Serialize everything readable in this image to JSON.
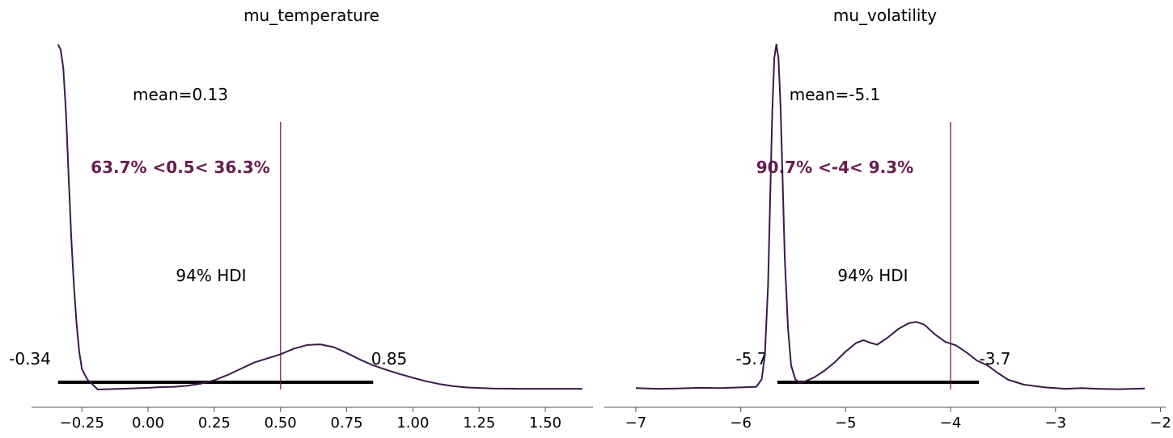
{
  "chart_data": [
    {
      "type": "density",
      "title": "mu_temperature",
      "xlim": [
        -0.44,
        1.68
      ],
      "xticks": [
        -0.25,
        0.0,
        0.25,
        0.5,
        0.75,
        1.0,
        1.25,
        1.5
      ],
      "xtick_labels": [
        "−0.25",
        "0.00",
        "0.25",
        "0.50",
        "0.75",
        "1.00",
        "1.25",
        "1.50"
      ],
      "mean_label": "mean=0.13",
      "hdi_label": "94% HDI",
      "hdi": [
        -0.34,
        0.85
      ],
      "hdi_low_label": "-0.34",
      "hdi_high_label": "0.85",
      "ref_val": 0.5,
      "ref_label": "63.7% <0.5< 36.3%",
      "line_color": "#3a1a47",
      "ref_color": "#6b1b4f",
      "density": [
        [
          -0.34,
          1.0
        ],
        [
          -0.33,
          0.985
        ],
        [
          -0.32,
          0.93
        ],
        [
          -0.31,
          0.8
        ],
        [
          -0.3,
          0.62
        ],
        [
          -0.29,
          0.44
        ],
        [
          -0.28,
          0.3
        ],
        [
          -0.27,
          0.19
        ],
        [
          -0.26,
          0.11
        ],
        [
          -0.25,
          0.06
        ],
        [
          -0.23,
          0.03
        ],
        [
          -0.21,
          0.015
        ],
        [
          -0.19,
          0.0
        ],
        [
          -0.1,
          0.002
        ],
        [
          0.0,
          0.005
        ],
        [
          0.05,
          0.007
        ],
        [
          0.1,
          0.008
        ],
        [
          0.15,
          0.011
        ],
        [
          0.2,
          0.017
        ],
        [
          0.25,
          0.027
        ],
        [
          0.3,
          0.042
        ],
        [
          0.35,
          0.06
        ],
        [
          0.4,
          0.078
        ],
        [
          0.45,
          0.09
        ],
        [
          0.5,
          0.102
        ],
        [
          0.55,
          0.118
        ],
        [
          0.6,
          0.129
        ],
        [
          0.65,
          0.131
        ],
        [
          0.7,
          0.123
        ],
        [
          0.75,
          0.106
        ],
        [
          0.8,
          0.087
        ],
        [
          0.85,
          0.07
        ],
        [
          0.9,
          0.057
        ],
        [
          0.95,
          0.045
        ],
        [
          1.0,
          0.034
        ],
        [
          1.05,
          0.024
        ],
        [
          1.1,
          0.016
        ],
        [
          1.15,
          0.01
        ],
        [
          1.2,
          0.006
        ],
        [
          1.3,
          0.003
        ],
        [
          1.4,
          0.002
        ],
        [
          1.5,
          0.002
        ],
        [
          1.64,
          0.002
        ]
      ]
    },
    {
      "type": "density",
      "title": "mu_volatility",
      "xlim": [
        -7.3,
        -1.95
      ],
      "xticks": [
        -7,
        -6,
        -5,
        -4,
        -3,
        -2
      ],
      "xtick_labels": [
        "−7",
        "−6",
        "−5",
        "−4",
        "−3",
        "−2"
      ],
      "mean_label": "mean=-5.1",
      "hdi_label": "94% HDI",
      "hdi": [
        -5.65,
        -3.73
      ],
      "hdi_low_label": "-5.7",
      "hdi_high_label": "-3.7",
      "ref_val": -4.0,
      "ref_label": "90.7% <-4< 9.3%",
      "line_color": "#3a1a47",
      "ref_color": "#6b1b4f",
      "density": [
        [
          -7.0,
          0.004
        ],
        [
          -6.8,
          0.002
        ],
        [
          -6.6,
          0.003
        ],
        [
          -6.4,
          0.005
        ],
        [
          -6.2,
          0.004
        ],
        [
          -6.0,
          0.006
        ],
        [
          -5.85,
          0.008
        ],
        [
          -5.8,
          0.03
        ],
        [
          -5.77,
          0.1
        ],
        [
          -5.74,
          0.3
        ],
        [
          -5.72,
          0.55
        ],
        [
          -5.7,
          0.8
        ],
        [
          -5.68,
          0.96
        ],
        [
          -5.66,
          1.0
        ],
        [
          -5.64,
          0.96
        ],
        [
          -5.62,
          0.82
        ],
        [
          -5.6,
          0.6
        ],
        [
          -5.58,
          0.38
        ],
        [
          -5.55,
          0.18
        ],
        [
          -5.52,
          0.07
        ],
        [
          -5.48,
          0.03
        ],
        [
          -5.44,
          0.02
        ],
        [
          -5.4,
          0.022
        ],
        [
          -5.3,
          0.035
        ],
        [
          -5.2,
          0.055
        ],
        [
          -5.1,
          0.08
        ],
        [
          -5.0,
          0.11
        ],
        [
          -4.9,
          0.135
        ],
        [
          -4.83,
          0.143
        ],
        [
          -4.76,
          0.135
        ],
        [
          -4.7,
          0.13
        ],
        [
          -4.6,
          0.15
        ],
        [
          -4.5,
          0.175
        ],
        [
          -4.4,
          0.192
        ],
        [
          -4.33,
          0.196
        ],
        [
          -4.25,
          0.188
        ],
        [
          -4.15,
          0.16
        ],
        [
          -4.05,
          0.138
        ],
        [
          -3.95,
          0.128
        ],
        [
          -3.85,
          0.108
        ],
        [
          -3.75,
          0.084
        ],
        [
          -3.65,
          0.07
        ],
        [
          -3.55,
          0.048
        ],
        [
          -3.45,
          0.028
        ],
        [
          -3.3,
          0.014
        ],
        [
          -3.1,
          0.006
        ],
        [
          -2.9,
          0.002
        ],
        [
          -2.75,
          0.004
        ],
        [
          -2.6,
          0.002
        ],
        [
          -2.4,
          0.001
        ],
        [
          -2.15,
          0.003
        ]
      ]
    }
  ]
}
